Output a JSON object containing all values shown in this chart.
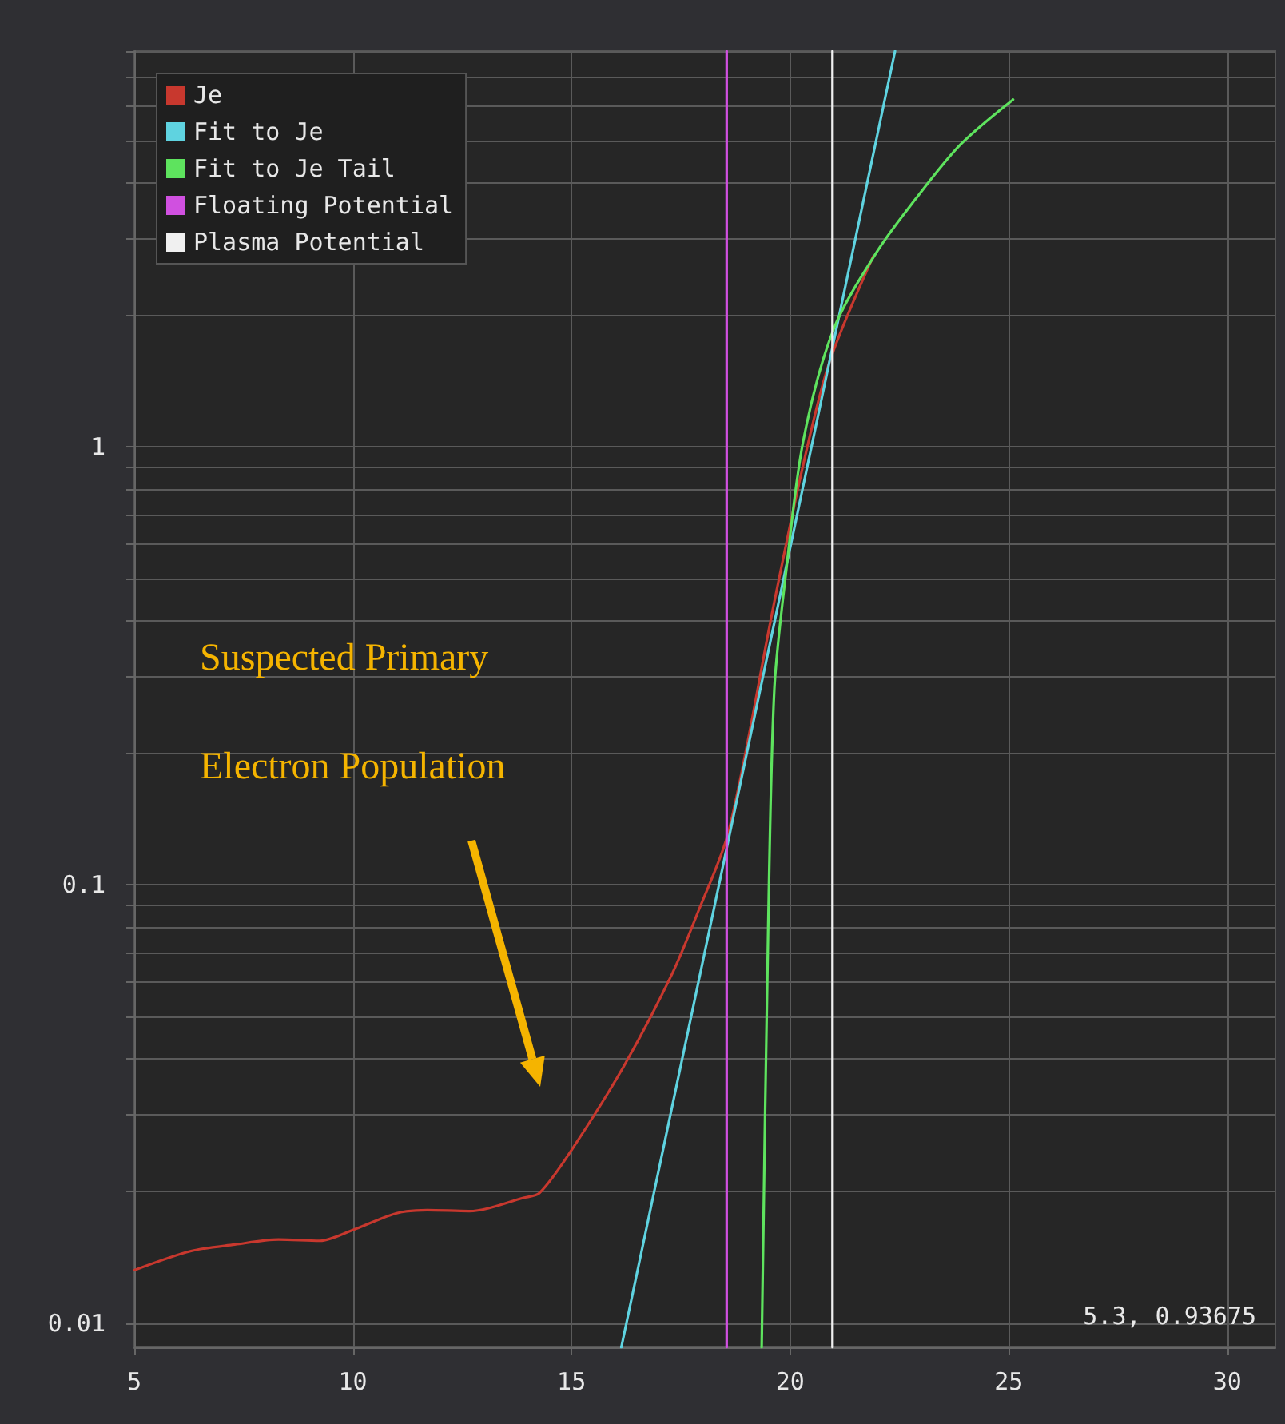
{
  "chart_data": {
    "type": "line",
    "log": "y",
    "grid": true,
    "legend": "top left",
    "marker": "none",
    "line_style": "solid",
    "xlim": [
      5,
      31.1
    ],
    "ylim": [
      0.0088,
      8
    ],
    "xticks": [
      5,
      10,
      15,
      20,
      25,
      30
    ],
    "yticks": [
      0.01,
      {
        "value": 0.02,
        "label": null
      },
      {
        "value": 0.03,
        "label": null
      },
      {
        "value": 0.04,
        "label": null
      },
      {
        "value": 0.05,
        "label": null
      },
      {
        "value": 0.06,
        "label": null
      },
      {
        "value": 0.07,
        "label": null
      },
      {
        "value": 0.08,
        "label": null
      },
      {
        "value": 0.09,
        "label": null
      },
      0.1,
      {
        "value": 0.2,
        "label": null
      },
      {
        "value": 0.3,
        "label": null
      },
      {
        "value": 0.4,
        "label": null
      },
      {
        "value": 0.5,
        "label": null
      },
      {
        "value": 0.6,
        "label": null
      },
      {
        "value": 0.7,
        "label": null
      },
      {
        "value": 0.8,
        "label": null
      },
      {
        "value": 0.9,
        "label": null
      },
      1,
      {
        "value": 2,
        "label": null
      },
      {
        "value": 3,
        "label": null
      },
      {
        "value": 4,
        "label": null
      },
      {
        "value": 5,
        "label": null
      },
      {
        "value": 6,
        "label": null
      },
      {
        "value": 7,
        "label": null
      },
      {
        "value": 8,
        "label": null
      }
    ],
    "series": [
      {
        "name": "Je",
        "color": "#c8382e",
        "x": [
          5.0,
          6.3,
          7.3,
          8.3,
          9.25,
          10.0,
          11.0,
          11.7,
          12.66,
          13.9,
          14.27,
          15.0,
          16.2,
          17.3,
          17.9,
          18.6,
          19.64,
          20.3,
          20.9,
          21.9
        ],
        "values": [
          0.0132,
          0.0146,
          0.0151,
          0.0155,
          0.0154,
          0.0163,
          0.0178,
          0.0181,
          0.018,
          0.0193,
          0.0198,
          0.0248,
          0.0386,
          0.0626,
          0.087,
          0.133,
          0.443,
          0.91,
          1.56,
          2.72
        ]
      },
      {
        "name": "Fit to Je",
        "color": "#5fd3e0",
        "x": [
          16.14,
          22.4
        ],
        "values": [
          0.0088,
          8
        ]
      },
      {
        "name": "Fit to Je Tail",
        "color": "#5ee35e",
        "x": [
          19.35,
          19.5,
          19.64,
          19.9,
          20.3,
          21.0,
          22.0,
          22.9,
          23.9,
          25.1
        ],
        "values": [
          0.0088,
          0.081,
          0.28,
          0.51,
          1.03,
          1.86,
          2.8,
          3.71,
          4.9,
          6.2
        ]
      },
      {
        "name": "Floating Potential",
        "color": "#d050e0",
        "x": [
          18.55,
          18.55
        ],
        "values": [
          0.0088,
          8
        ]
      },
      {
        "name": "Plasma Potential",
        "color": "#f0f0f0",
        "x": [
          20.97,
          20.97
        ],
        "values": [
          0.0088,
          8
        ]
      }
    ],
    "annotations": [
      "Suspected Primary Electron Population",
      "5.3, 0.93675"
    ]
  }
}
